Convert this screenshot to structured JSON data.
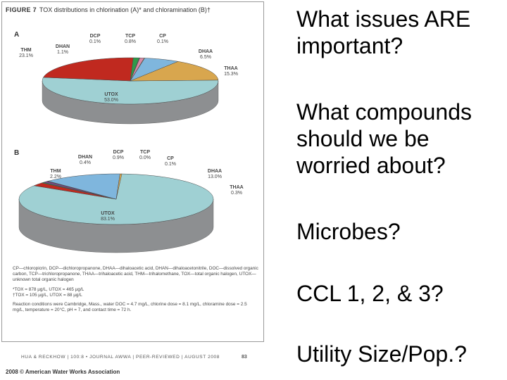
{
  "figure": {
    "title_label": "FIGURE 7",
    "title_text": "TOX distributions in chlorination (A)* and chloramination (B)†",
    "panel_a_label": "A",
    "panel_b_label": "B",
    "notes": [
      "CP—chloropicrin, DCP—dichloropropanone, DHAA—dihaloacetic acid, DHAN—dihaloacetonitrile, DOC—dissolved organic carbon, TCP—trichloropropanone, THAA—trihaloacetic acid, THM—trihalomethane, TOX—total organic halogen, UTOX—unknown total organic halogen",
      "*TOX = 878 µg/L, UTOX = 465 µg/L\n†TOX = 105 µg/L, UTOX = 88 µg/L",
      "Reaction conditions were Cambridge, Mass., water DOC = 4.7 mg/L, chlorine dose = 8.1 mg/L, chloramine dose = 2.5 mg/L, temperature = 20°C, pH = 7, and contact time = 72 h."
    ],
    "footer": "HUA & RECKHOW | 100:8 • JOURNAL AWWA | PEER-REVIEWED | AUGUST 2008",
    "page_number": "83",
    "copyright": "2008 © American Water Works Association"
  },
  "chart_data": [
    {
      "type": "pie",
      "panel": "A",
      "slices": [
        {
          "name": "UTOX",
          "value_label": "53.0%",
          "value": 53.0,
          "color": "#9fd0d3"
        },
        {
          "name": "THM",
          "value_label": "23.1%",
          "value": 23.1,
          "color": "#c0291f"
        },
        {
          "name": "DHAN",
          "value_label": "1.1%",
          "value": 1.1,
          "color": "#2e9a4a"
        },
        {
          "name": "DCP",
          "value_label": "0.1%",
          "value": 0.1,
          "color": "#7a4a8a"
        },
        {
          "name": "TCP",
          "value_label": "0.8%",
          "value": 0.8,
          "color": "#d98aa6"
        },
        {
          "name": "CP",
          "value_label": "0.1%",
          "value": 0.1,
          "color": "#e0b030"
        },
        {
          "name": "DHAA",
          "value_label": "6.5%",
          "value": 6.5,
          "color": "#7fb6dd"
        },
        {
          "name": "THAA",
          "value_label": "15.3%",
          "value": 15.3,
          "color": "#d8a64e"
        }
      ]
    },
    {
      "type": "pie",
      "panel": "B",
      "slices": [
        {
          "name": "UTOX",
          "value_label": "83.1%",
          "value": 83.1,
          "color": "#9fd0d3"
        },
        {
          "name": "THM",
          "value_label": "2.2%",
          "value": 2.2,
          "color": "#c0291f"
        },
        {
          "name": "DHAN",
          "value_label": "0.4%",
          "value": 0.4,
          "color": "#2e9a4a"
        },
        {
          "name": "DCP",
          "value_label": "0.9%",
          "value": 0.9,
          "color": "#7a4a8a"
        },
        {
          "name": "TCP",
          "value_label": "0.0%",
          "value": 0.0,
          "color": "#d98aa6"
        },
        {
          "name": "CP",
          "value_label": "0.1%",
          "value": 0.1,
          "color": "#e0b030"
        },
        {
          "name": "DHAA",
          "value_label": "13.0%",
          "value": 13.0,
          "color": "#7fb6dd"
        },
        {
          "name": "THAA",
          "value_label": "0.3%",
          "value": 0.3,
          "color": "#d8a64e"
        }
      ]
    }
  ],
  "questions": [
    "What issues ARE important?",
    "What compounds should we be worried about?",
    "Microbes?",
    "CCL 1, 2, & 3?",
    "Utility Size/Pop.?"
  ]
}
